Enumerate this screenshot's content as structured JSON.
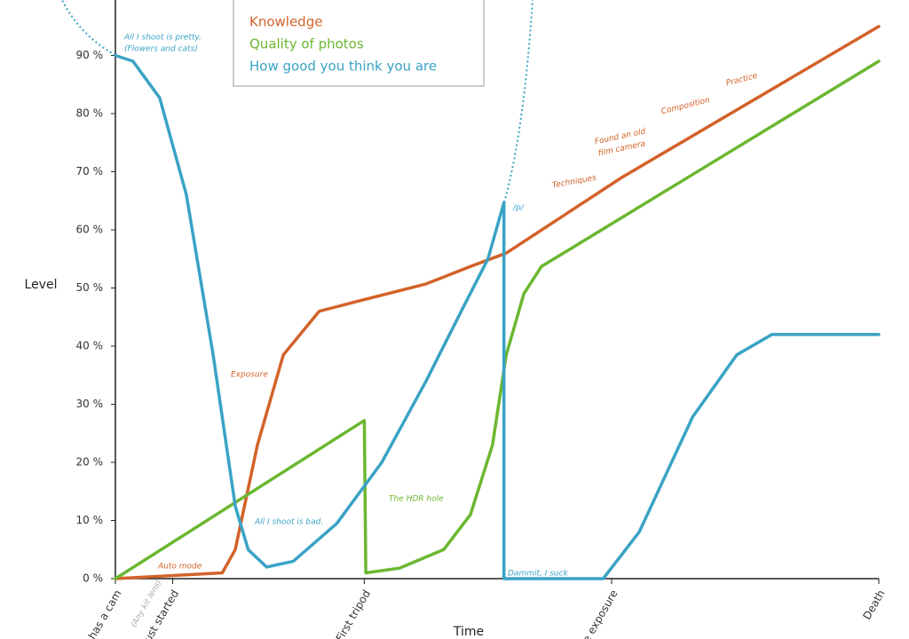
{
  "chart_data": {
    "type": "line",
    "ylabel": "Level",
    "xlabel": "Time",
    "xlim": [
      0,
      100
    ],
    "ylim": [
      0,
      100
    ],
    "xticks": [
      {
        "value": 0,
        "label": "e has a cam"
      },
      {
        "value": 7.5,
        "label": "Just started"
      },
      {
        "value": 32.6,
        "label": "First tripod"
      },
      {
        "value": 65,
        "label": "ne exposure"
      },
      {
        "value": 100,
        "label": "Death"
      }
    ],
    "yticks": [
      {
        "value": 0,
        "label": "0 %"
      },
      {
        "value": 10,
        "label": "10 %"
      },
      {
        "value": 20,
        "label": "20 %"
      },
      {
        "value": 30,
        "label": "30 %"
      },
      {
        "value": 40,
        "label": "40 %"
      },
      {
        "value": 50,
        "label": "50 %"
      },
      {
        "value": 60,
        "label": "60 %"
      },
      {
        "value": 70,
        "label": "70 %"
      },
      {
        "value": 80,
        "label": "80 %"
      },
      {
        "value": 90,
        "label": "90 %"
      }
    ],
    "series": [
      {
        "name": "Knowledge",
        "color": "#d2622a",
        "x": [
          0,
          14,
          15.7,
          18.6,
          22,
          26.7,
          31.4,
          40.7,
          46.5,
          51.2,
          66.3,
          100
        ],
        "values": [
          0,
          1,
          5,
          23,
          38.5,
          46,
          47.6,
          50.7,
          53.7,
          56,
          69,
          95
        ]
      },
      {
        "name": "Quality of photos",
        "color": "#6bb731",
        "x": [
          0,
          32.6,
          32.8,
          37.2,
          43,
          46.5,
          49.4,
          51.2,
          53.5,
          55.8,
          100
        ],
        "values": [
          0,
          27.2,
          1,
          1.8,
          5,
          11,
          23,
          38.5,
          49,
          53.7,
          89
        ]
      },
      {
        "name": "How good you think you are",
        "color": "#3aa3c5",
        "x": [
          0,
          2.3,
          5.8,
          9.3,
          12.8,
          15.7,
          17.4,
          19.8,
          23.3,
          29,
          34.9,
          40.7,
          45.3,
          48.8,
          50.9,
          50.9,
          63.9,
          68.6,
          75.6,
          81.4,
          86,
          100
        ],
        "values": [
          90,
          89,
          82.7,
          66,
          38.5,
          12.5,
          5,
          2,
          3,
          9.5,
          20,
          34,
          46,
          55,
          64.7,
          0,
          0,
          8,
          27.8,
          38.5,
          42,
          42
        ]
      }
    ],
    "annotations": [
      "All I shoot is pretty.",
      "(Flowers and cats)",
      "Exposure",
      "Auto mode",
      "All I shoot is bad.",
      "The HDR hole",
      "/p/",
      "Techniques",
      "Found an old",
      "film camera",
      "Composition",
      "Practice",
      "Dammit, I suck",
      "(Any kit lens)"
    ]
  }
}
